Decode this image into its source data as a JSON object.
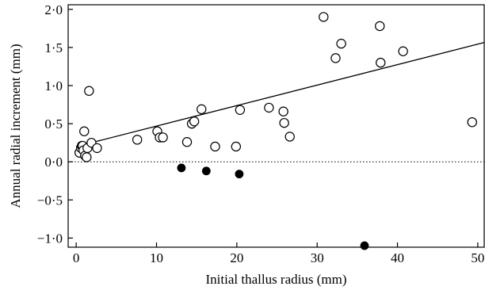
{
  "chart_data": {
    "type": "scatter",
    "xlabel": "Initial thallus radius (mm)",
    "ylabel": "Annual radial increment (mm)",
    "xlim": [
      -1,
      50.8
    ],
    "ylim": [
      -1.12,
      2.06
    ],
    "xticks": [
      0,
      10,
      20,
      30,
      40,
      50
    ],
    "yticks": [
      2.0,
      1.5,
      1.0,
      0.5,
      0.0,
      -0.5,
      -1.0
    ],
    "xtick_labels": [
      "0",
      "10",
      "20",
      "30",
      "40",
      "50"
    ],
    "ytick_labels": [
      "2·0",
      "1·5",
      "1·0",
      "0·5",
      "0·0",
      "−0·5",
      "−1·0"
    ],
    "grid": false,
    "reference_line": {
      "y": 0.0,
      "style": "dotted"
    },
    "regression_line": {
      "x": [
        0,
        51
      ],
      "y": [
        0.2,
        1.57
      ]
    },
    "series": [
      {
        "marker": "open-circle",
        "color": "#000000",
        "points": [
          [
            0.4,
            0.12
          ],
          [
            0.6,
            0.18
          ],
          [
            0.7,
            0.21
          ],
          [
            0.8,
            0.21
          ],
          [
            0.9,
            0.15
          ],
          [
            1.0,
            0.4
          ],
          [
            1.1,
            0.08
          ],
          [
            1.3,
            0.06
          ],
          [
            1.4,
            0.18
          ],
          [
            1.6,
            0.93
          ],
          [
            1.9,
            0.25
          ],
          [
            2.6,
            0.18
          ],
          [
            7.6,
            0.29
          ],
          [
            10.1,
            0.4
          ],
          [
            10.4,
            0.32
          ],
          [
            10.8,
            0.32
          ],
          [
            13.8,
            0.26
          ],
          [
            14.4,
            0.5
          ],
          [
            14.7,
            0.53
          ],
          [
            15.6,
            0.69
          ],
          [
            17.3,
            0.2
          ],
          [
            19.9,
            0.2
          ],
          [
            20.4,
            0.68
          ],
          [
            24.0,
            0.71
          ],
          [
            25.8,
            0.66
          ],
          [
            25.9,
            0.51
          ],
          [
            26.6,
            0.33
          ],
          [
            30.8,
            1.9
          ],
          [
            32.3,
            1.36
          ],
          [
            33.0,
            1.55
          ],
          [
            37.8,
            1.78
          ],
          [
            37.9,
            1.3
          ],
          [
            40.7,
            1.45
          ],
          [
            49.3,
            0.52
          ]
        ]
      },
      {
        "marker": "filled-circle",
        "color": "#000000",
        "points": [
          [
            13.1,
            -0.08
          ],
          [
            16.2,
            -0.12
          ],
          [
            20.3,
            -0.16
          ],
          [
            35.9,
            -1.1
          ]
        ]
      }
    ]
  }
}
